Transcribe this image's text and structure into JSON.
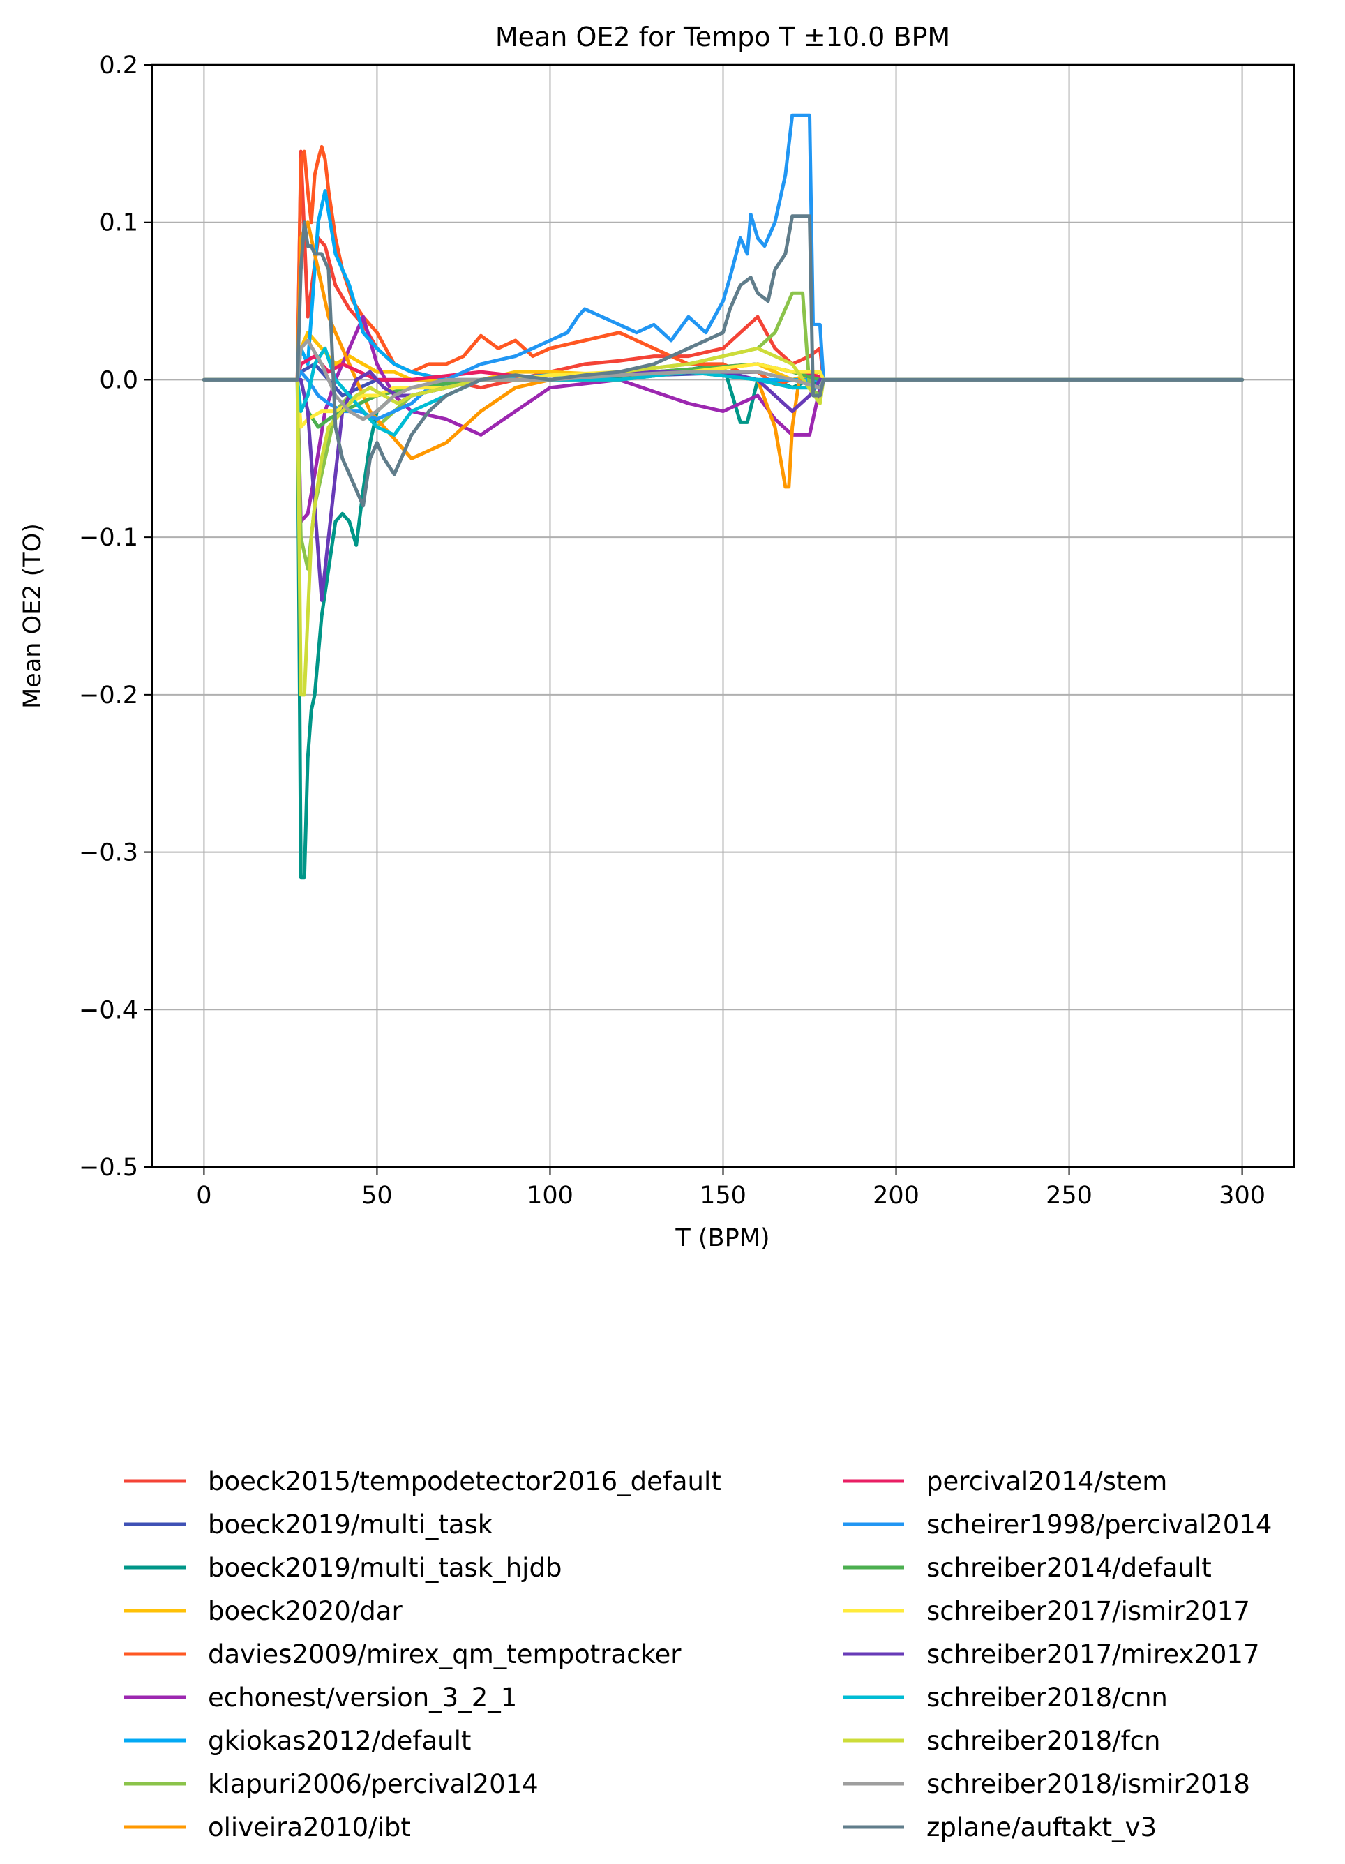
{
  "chart_data": {
    "type": "line",
    "title": "Mean OE2 for Tempo T ±10.0 BPM",
    "xlabel": "T (BPM)",
    "ylabel": "Mean OE2 (TO)",
    "xlim": [
      -15,
      315
    ],
    "ylim": [
      -0.5,
      0.2
    ],
    "xticks": [
      0,
      50,
      100,
      150,
      200,
      250,
      300
    ],
    "yticks": [
      0.2,
      0.1,
      0.0,
      -0.1,
      -0.2,
      -0.3,
      -0.4,
      -0.5
    ],
    "xtick_labels": [
      "0",
      "50",
      "100",
      "150",
      "200",
      "250",
      "300"
    ],
    "ytick_labels": [
      "0.2",
      "0.1",
      "0.0",
      "−0.1",
      "−0.2",
      "−0.3",
      "−0.4",
      "−0.5"
    ],
    "grid": true,
    "legend_position": "below",
    "series": [
      {
        "name": "boeck2015/tempodetector2016_default",
        "color": "#f44336",
        "x": [
          0,
          27,
          28,
          30,
          33,
          35,
          38,
          42,
          46,
          50,
          55,
          60,
          70,
          80,
          90,
          100,
          110,
          120,
          130,
          140,
          150,
          155,
          160,
          165,
          170,
          175,
          178,
          179,
          300
        ],
        "y": [
          0,
          0,
          0.145,
          0.04,
          0.09,
          0.085,
          0.06,
          0.045,
          0.035,
          0.02,
          0.01,
          0.005,
          0,
          -0.005,
          0,
          0.005,
          0.01,
          0.012,
          0.015,
          0.015,
          0.02,
          0.03,
          0.04,
          0.02,
          0.01,
          0.015,
          0.02,
          0,
          0
        ]
      },
      {
        "name": "boeck2019/multi_task",
        "color": "#3f51b5",
        "x": [
          0,
          27,
          28,
          32,
          36,
          40,
          45,
          50,
          60,
          80,
          100,
          130,
          160,
          170,
          178,
          179,
          300
        ],
        "y": [
          0,
          0,
          0.005,
          0.01,
          0.0,
          -0.01,
          -0.005,
          0.0,
          0.0,
          0.0,
          0.0,
          0.003,
          0.005,
          0.0,
          0.002,
          0,
          0
        ]
      },
      {
        "name": "boeck2019/multi_task_hjdb",
        "color": "#009688",
        "x": [
          0,
          27,
          28,
          29,
          30,
          31,
          32,
          34,
          36,
          38,
          40,
          42,
          44,
          46,
          48,
          50,
          55,
          60,
          70,
          80,
          100,
          130,
          150,
          155,
          157,
          160,
          165,
          170,
          175,
          178,
          179,
          300
        ],
        "y": [
          0,
          0,
          -0.316,
          -0.316,
          -0.24,
          -0.21,
          -0.2,
          -0.15,
          -0.12,
          -0.09,
          -0.085,
          -0.09,
          -0.105,
          -0.07,
          -0.04,
          -0.02,
          -0.01,
          -0.01,
          -0.005,
          0.0,
          0.0,
          0.003,
          0.01,
          -0.027,
          -0.027,
          0.0,
          0.0,
          -0.005,
          0.0,
          -0.005,
          0,
          0
        ]
      },
      {
        "name": "boeck2020/dar",
        "color": "#ffc107",
        "x": [
          0,
          27,
          28,
          30,
          34,
          38,
          42,
          46,
          50,
          55,
          60,
          70,
          80,
          90,
          100,
          120,
          140,
          160,
          170,
          178,
          179,
          300
        ],
        "y": [
          0,
          0,
          0.02,
          0.03,
          0.02,
          0.01,
          0.015,
          0.01,
          0.005,
          0.005,
          0.0,
          0.0,
          0.0,
          0.005,
          0.005,
          0.003,
          0.005,
          0.01,
          0.0,
          0.005,
          0,
          0
        ]
      },
      {
        "name": "davies2009/mirex_qm_tempotracker",
        "color": "#ff5722",
        "x": [
          0,
          27,
          28,
          29,
          30,
          31,
          32,
          33,
          34,
          35,
          36,
          38,
          40,
          43,
          46,
          50,
          55,
          60,
          65,
          70,
          75,
          80,
          85,
          90,
          95,
          100,
          110,
          120,
          130,
          140,
          150,
          155,
          160,
          165,
          170,
          175,
          178,
          179,
          300
        ],
        "y": [
          0,
          0,
          0.14,
          0.145,
          0.12,
          0.1,
          0.13,
          0.14,
          0.148,
          0.14,
          0.12,
          0.09,
          0.07,
          0.05,
          0.04,
          0.03,
          0.01,
          0.005,
          0.01,
          0.01,
          0.015,
          0.028,
          0.02,
          0.025,
          0.015,
          0.02,
          0.025,
          0.03,
          0.02,
          0.01,
          0.01,
          0.005,
          0.005,
          -0.003,
          0.0,
          0.0,
          0.0,
          0,
          0
        ]
      },
      {
        "name": "echonest/version_3_2_1",
        "color": "#9c27b0",
        "x": [
          0,
          27,
          28,
          30,
          32,
          35,
          38,
          42,
          46,
          50,
          55,
          60,
          70,
          80,
          90,
          100,
          120,
          140,
          150,
          160,
          165,
          170,
          175,
          178,
          179,
          300
        ],
        "y": [
          0,
          0,
          -0.09,
          -0.085,
          -0.06,
          -0.02,
          0.0,
          0.02,
          0.04,
          0.01,
          -0.01,
          -0.02,
          -0.025,
          -0.035,
          -0.02,
          -0.005,
          0.0,
          -0.015,
          -0.02,
          -0.01,
          -0.025,
          -0.035,
          -0.035,
          -0.005,
          0,
          0
        ]
      },
      {
        "name": "gkiokas2012/default",
        "color": "#03a9f4",
        "x": [
          0,
          27,
          28,
          30,
          33,
          35,
          38,
          42,
          46,
          50,
          55,
          60,
          70,
          80,
          100,
          120,
          140,
          160,
          170,
          178,
          179,
          300
        ],
        "y": [
          0,
          0,
          0.02,
          0.01,
          0.1,
          0.12,
          0.08,
          0.06,
          0.03,
          0.02,
          0.01,
          0.005,
          0.0,
          0.0,
          0.003,
          0.0,
          0.005,
          0.0,
          0.0,
          0.0,
          0,
          0
        ]
      },
      {
        "name": "klapuri2006/percival2014",
        "color": "#8bc34a",
        "x": [
          0,
          27,
          28,
          30,
          32,
          35,
          38,
          42,
          46,
          50,
          55,
          60,
          70,
          80,
          100,
          120,
          140,
          150,
          160,
          165,
          170,
          173,
          175,
          178,
          179,
          300
        ],
        "y": [
          0,
          0,
          -0.1,
          -0.12,
          -0.08,
          -0.05,
          -0.02,
          -0.01,
          -0.02,
          -0.03,
          -0.02,
          -0.01,
          -0.005,
          0.0,
          0.0,
          0.005,
          0.01,
          0.015,
          0.02,
          0.03,
          0.055,
          0.055,
          -0.005,
          -0.01,
          0,
          0
        ]
      },
      {
        "name": "oliveira2010/ibt",
        "color": "#ff9800",
        "x": [
          0,
          27,
          28,
          30,
          32,
          34,
          36,
          40,
          44,
          48,
          52,
          56,
          60,
          65,
          70,
          80,
          90,
          100,
          120,
          140,
          160,
          165,
          168,
          169,
          170,
          172,
          175,
          178,
          179,
          300
        ],
        "y": [
          0,
          0,
          0.09,
          0.1,
          0.08,
          0.06,
          0.04,
          0.02,
          0.0,
          -0.02,
          -0.03,
          -0.04,
          -0.05,
          -0.045,
          -0.04,
          -0.02,
          -0.005,
          0.0,
          0.0,
          0.005,
          0.0,
          -0.03,
          -0.068,
          -0.068,
          -0.03,
          0.0,
          0.005,
          0.0,
          0,
          0
        ]
      },
      {
        "name": "percival2014/stem",
        "color": "#e91e63",
        "x": [
          0,
          27,
          28,
          32,
          36,
          40,
          45,
          50,
          60,
          80,
          100,
          130,
          160,
          170,
          178,
          179,
          300
        ],
        "y": [
          0,
          0,
          0.01,
          0.015,
          0.005,
          0.01,
          0.005,
          0.0,
          0.0,
          0.005,
          0.0,
          0.005,
          0.01,
          0.005,
          0.002,
          0,
          0
        ]
      },
      {
        "name": "scheirer1998/percival2014",
        "color": "#2196f3",
        "x": [
          0,
          27,
          28,
          30,
          33,
          36,
          40,
          45,
          50,
          55,
          60,
          65,
          70,
          80,
          90,
          100,
          105,
          108,
          110,
          115,
          120,
          125,
          130,
          135,
          140,
          145,
          150,
          152,
          155,
          157,
          158,
          160,
          162,
          165,
          168,
          170,
          172,
          175,
          176,
          177,
          178,
          179,
          300
        ],
        "y": [
          0,
          0,
          0.005,
          0.0,
          -0.01,
          -0.015,
          -0.02,
          -0.02,
          -0.025,
          -0.02,
          -0.015,
          -0.005,
          0.0,
          0.01,
          0.015,
          0.025,
          0.03,
          0.04,
          0.045,
          0.04,
          0.035,
          0.03,
          0.035,
          0.025,
          0.04,
          0.03,
          0.05,
          0.065,
          0.09,
          0.08,
          0.105,
          0.09,
          0.085,
          0.1,
          0.13,
          0.168,
          0.168,
          0.168,
          0.035,
          0.035,
          0.035,
          0,
          0
        ]
      },
      {
        "name": "schreiber2014/default",
        "color": "#4caf50",
        "x": [
          0,
          27,
          28,
          30,
          33,
          36,
          40,
          45,
          50,
          60,
          80,
          100,
          130,
          160,
          170,
          178,
          179,
          300
        ],
        "y": [
          0,
          0,
          0.0,
          -0.02,
          -0.03,
          -0.025,
          -0.02,
          -0.015,
          -0.01,
          -0.005,
          0.0,
          0.0,
          0.005,
          0.01,
          0.005,
          0.0,
          0,
          0
        ]
      },
      {
        "name": "schreiber2017/ismir2017",
        "color": "#ffeb3b",
        "x": [
          0,
          27,
          28,
          30,
          34,
          38,
          42,
          46,
          50,
          55,
          60,
          70,
          80,
          90,
          100,
          120,
          140,
          160,
          170,
          178,
          179,
          300
        ],
        "y": [
          0,
          0,
          -0.03,
          -0.025,
          -0.02,
          -0.02,
          -0.015,
          -0.01,
          -0.01,
          -0.005,
          -0.005,
          -0.005,
          0.0,
          0.0,
          0.003,
          0.005,
          0.005,
          0.01,
          0.005,
          0.005,
          0,
          0
        ]
      },
      {
        "name": "schreiber2017/mirex2017",
        "color": "#673ab7",
        "x": [
          0,
          27,
          28,
          30,
          32,
          34,
          36,
          38,
          40,
          44,
          48,
          52,
          56,
          60,
          70,
          80,
          100,
          130,
          150,
          160,
          165,
          170,
          175,
          178,
          179,
          300
        ],
        "y": [
          0,
          0,
          0.0,
          -0.02,
          -0.08,
          -0.14,
          -0.1,
          -0.06,
          -0.02,
          0.0,
          0.005,
          -0.005,
          -0.01,
          -0.01,
          -0.005,
          0.0,
          0.0,
          0.005,
          0.005,
          0.0,
          -0.01,
          -0.02,
          -0.01,
          0.0,
          0,
          0
        ]
      },
      {
        "name": "schreiber2018/cnn",
        "color": "#00bcd4",
        "x": [
          0,
          27,
          28,
          30,
          32,
          35,
          38,
          42,
          46,
          50,
          55,
          60,
          70,
          80,
          100,
          120,
          140,
          160,
          170,
          178,
          179,
          300
        ],
        "y": [
          0,
          0,
          -0.02,
          -0.01,
          0.01,
          0.02,
          0.0,
          -0.01,
          -0.02,
          -0.03,
          -0.035,
          -0.02,
          -0.01,
          0.0,
          0.0,
          0.0,
          0.005,
          0.0,
          -0.005,
          -0.005,
          0,
          0
        ]
      },
      {
        "name": "schreiber2018/fcn",
        "color": "#cddc39",
        "x": [
          0,
          27,
          28,
          29,
          30,
          31,
          32,
          34,
          36,
          40,
          44,
          48,
          52,
          56,
          60,
          70,
          80,
          100,
          120,
          140,
          150,
          160,
          170,
          178,
          179,
          300
        ],
        "y": [
          0,
          0,
          -0.2,
          -0.2,
          -0.15,
          -0.1,
          -0.08,
          -0.05,
          -0.03,
          -0.02,
          -0.01,
          -0.005,
          -0.01,
          -0.015,
          -0.01,
          -0.005,
          0.0,
          0.0,
          0.005,
          0.01,
          0.015,
          0.02,
          0.01,
          -0.015,
          0,
          0
        ]
      },
      {
        "name": "schreiber2018/ismir2018",
        "color": "#9e9e9e",
        "x": [
          0,
          27,
          28,
          30,
          34,
          38,
          42,
          46,
          50,
          55,
          60,
          70,
          80,
          100,
          120,
          140,
          160,
          170,
          178,
          179,
          300
        ],
        "y": [
          0,
          0,
          0.02,
          0.025,
          0.01,
          -0.01,
          -0.02,
          -0.025,
          -0.02,
          -0.01,
          -0.005,
          0.0,
          0.0,
          0.0,
          0.003,
          0.005,
          0.005,
          0.0,
          -0.005,
          0,
          0
        ]
      },
      {
        "name": "zplane/auftakt_v3",
        "color": "#607d8b",
        "x": [
          0,
          27,
          28,
          29,
          30,
          31,
          32,
          33,
          34,
          36,
          38,
          40,
          42,
          44,
          46,
          48,
          50,
          52,
          55,
          58,
          60,
          65,
          70,
          80,
          90,
          100,
          110,
          120,
          130,
          140,
          150,
          152,
          155,
          158,
          160,
          163,
          165,
          168,
          170,
          172,
          175,
          176,
          177,
          178,
          179,
          300
        ],
        "y": [
          0,
          0,
          0.07,
          0.1,
          0.085,
          0.085,
          0.08,
          0.08,
          0.08,
          0.07,
          -0.03,
          -0.05,
          -0.06,
          -0.07,
          -0.08,
          -0.05,
          -0.04,
          -0.05,
          -0.06,
          -0.045,
          -0.035,
          -0.02,
          -0.01,
          0.0,
          0.003,
          0.0,
          0.003,
          0.005,
          0.01,
          0.02,
          0.03,
          0.045,
          0.06,
          0.065,
          0.055,
          0.05,
          0.07,
          0.08,
          0.104,
          0.104,
          0.104,
          -0.01,
          -0.01,
          -0.01,
          0,
          0
        ]
      }
    ]
  }
}
